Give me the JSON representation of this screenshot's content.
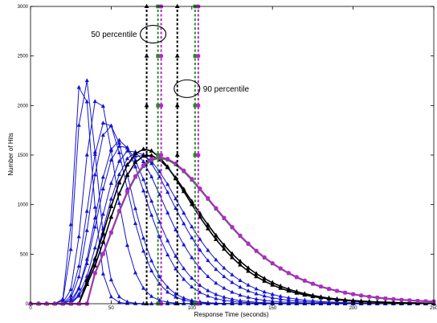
{
  "chart_data": {
    "type": "line",
    "title": "",
    "xlabel": "Response Time (seconds)",
    "ylabel": "Number of Hits",
    "xlim": [
      0,
      250
    ],
    "ylim": [
      0,
      3000
    ],
    "xticks": [
      "0",
      "50",
      "100",
      "150",
      "200",
      "250"
    ],
    "yticks": [
      "0",
      "500",
      "1000",
      "1500",
      "2000",
      "2500",
      "3000"
    ],
    "grid": false,
    "legend": "none",
    "colors": {
      "blue": "#1414d2",
      "black": "#000000",
      "magenta": "#b428c8",
      "green": "#2a8a2a"
    },
    "x": [
      0,
      5,
      10,
      15,
      20,
      25,
      30,
      35,
      40,
      45,
      50,
      55,
      60,
      65,
      70,
      75,
      80,
      85,
      90,
      95,
      100,
      105,
      110,
      115,
      120,
      125,
      130,
      135,
      140,
      145,
      150,
      155,
      160,
      165,
      170,
      175,
      180,
      185,
      190,
      195,
      200,
      205,
      210,
      215,
      220,
      225,
      230,
      235,
      240,
      245,
      250
    ],
    "blue_series": [
      {
        "peak_x": 32,
        "peak_y": 2350,
        "spread": 6.0
      },
      {
        "peak_x": 34,
        "peak_y": 2280,
        "spread": 6.5
      },
      {
        "peak_x": 42,
        "peak_y": 2090,
        "spread": 8.0
      },
      {
        "peak_x": 47,
        "peak_y": 1850,
        "spread": 9.0
      },
      {
        "peak_x": 49,
        "peak_y": 1800,
        "spread": 9.0
      },
      {
        "peak_x": 55,
        "peak_y": 1650,
        "spread": 10.0
      },
      {
        "peak_x": 57,
        "peak_y": 1600,
        "spread": 10.5
      },
      {
        "peak_x": 62,
        "peak_y": 1550,
        "spread": 11.0
      },
      {
        "peak_x": 66,
        "peak_y": 1530,
        "spread": 11.5
      },
      {
        "peak_x": 68,
        "peak_y": 1500,
        "spread": 12.0
      }
    ],
    "black_series": [
      {
        "peak_x": 71,
        "peak_y": 1560,
        "spread": 13.0
      },
      {
        "peak_x": 73,
        "peak_y": 1500,
        "spread": 13.0
      }
    ],
    "magenta_series": {
      "peak_x": 80,
      "peak_y": 1480,
      "spread": 14.0
    },
    "green_series": {
      "peak_x": 80,
      "peak_y": 1470,
      "spread": 14.0
    },
    "percentile_lines": [
      {
        "x": 72,
        "color": "black"
      },
      {
        "x": 79,
        "color": "green"
      },
      {
        "x": 81,
        "color": "magenta"
      },
      {
        "x": 91,
        "color": "black"
      },
      {
        "x": 102,
        "color": "green"
      },
      {
        "x": 104,
        "color": "magenta"
      }
    ],
    "annotations": [
      {
        "text": "50 percentile",
        "x": 76,
        "y": 2720
      },
      {
        "text": "90 percentile",
        "x": 97,
        "y": 2170
      }
    ]
  }
}
